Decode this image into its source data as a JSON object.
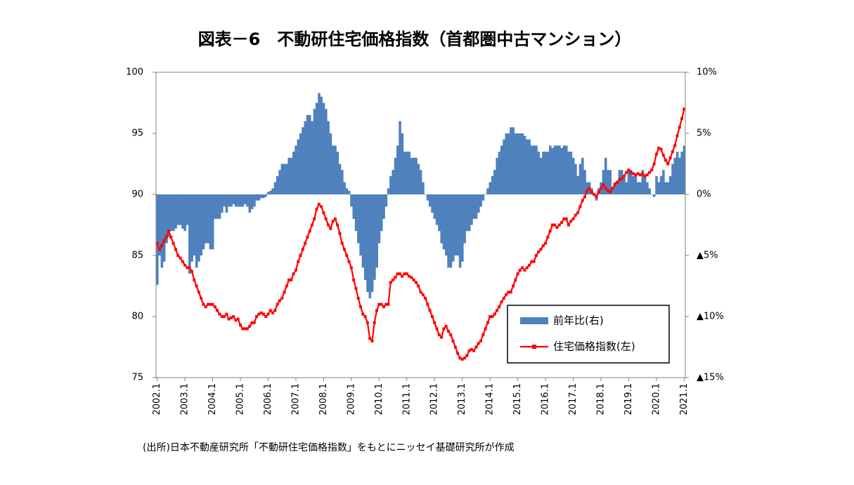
{
  "chart_data": {
    "type": "combo",
    "title": "図表－6　不動研住宅価格指数（首都圏中古マンション）",
    "note": "(出所)日本不動産研究所「不動研住宅価格指数」をもとにニッセイ基礎研究所が作成",
    "categories": [
      "2002.1",
      null,
      null,
      null,
      null,
      null,
      null,
      null,
      null,
      null,
      null,
      null,
      "2003.1",
      null,
      null,
      null,
      null,
      null,
      null,
      null,
      null,
      null,
      null,
      null,
      "2004.1",
      null,
      null,
      null,
      null,
      null,
      null,
      null,
      null,
      null,
      null,
      null,
      "2005.1",
      null,
      null,
      null,
      null,
      null,
      null,
      null,
      null,
      null,
      null,
      null,
      "2006.1",
      null,
      null,
      null,
      null,
      null,
      null,
      null,
      null,
      null,
      null,
      null,
      "2007.1",
      null,
      null,
      null,
      null,
      null,
      null,
      null,
      null,
      null,
      null,
      null,
      "2008.1",
      null,
      null,
      null,
      null,
      null,
      null,
      null,
      null,
      null,
      null,
      null,
      "2009.1",
      null,
      null,
      null,
      null,
      null,
      null,
      null,
      null,
      null,
      null,
      null,
      "2010.1",
      null,
      null,
      null,
      null,
      null,
      null,
      null,
      null,
      null,
      null,
      null,
      "2011.1",
      null,
      null,
      null,
      null,
      null,
      null,
      null,
      null,
      null,
      null,
      null,
      "2012.1",
      null,
      null,
      null,
      null,
      null,
      null,
      null,
      null,
      null,
      null,
      null,
      "2013.1",
      null,
      null,
      null,
      null,
      null,
      null,
      null,
      null,
      null,
      null,
      null,
      "2014.1",
      null,
      null,
      null,
      null,
      null,
      null,
      null,
      null,
      null,
      null,
      null,
      "2015.1",
      null,
      null,
      null,
      null,
      null,
      null,
      null,
      null,
      null,
      null,
      null,
      "2016.1",
      null,
      null,
      null,
      null,
      null,
      null,
      null,
      null,
      null,
      null,
      null,
      "2017.1",
      null,
      null,
      null,
      null,
      null,
      null,
      null,
      null,
      null,
      null,
      null,
      "2018.1",
      null,
      null,
      null,
      null,
      null,
      null,
      null,
      null,
      null,
      null,
      null,
      "2019.1",
      null,
      null,
      null,
      null,
      null,
      null,
      null,
      null,
      null,
      null,
      null,
      "2020.1",
      null,
      null,
      null,
      null,
      null,
      null,
      null,
      null,
      null,
      null,
      null,
      "2021.1"
    ],
    "series": [
      {
        "name": "前年比(右)",
        "type": "bar",
        "axis": "y2",
        "color": "#4f81bd",
        "values": [
          -7.4,
          -5,
          -6,
          -5.5,
          -4,
          -3.5,
          -3,
          -3,
          -2.8,
          -2.5,
          -2.5,
          -2.8,
          -3,
          -2.5,
          -6.5,
          -5.5,
          -5,
          -6,
          -5.5,
          -5,
          -4.5,
          -4,
          -4,
          -4.5,
          -4.5,
          -2,
          -2,
          -2,
          -1.5,
          -1,
          -1.5,
          -1,
          -1,
          -0.8,
          -1,
          -1,
          -1,
          -1,
          -0.8,
          -1,
          -1.5,
          -1.2,
          -1,
          -0.5,
          -0.5,
          -0.3,
          -0.3,
          -0.2,
          0.2,
          0.3,
          0.5,
          1,
          1.5,
          2,
          2.5,
          2.5,
          2.5,
          3,
          3,
          3.5,
          4,
          4.5,
          5,
          5.5,
          6,
          6.5,
          6.5,
          6,
          7,
          7.5,
          8.3,
          8,
          7.5,
          7,
          6,
          5,
          4,
          4,
          3.5,
          2.5,
          2,
          1,
          0.5,
          0.3,
          -1,
          -2,
          -3,
          -4,
          -5,
          -6,
          -7,
          -8,
          -8.5,
          -8,
          -7,
          -6,
          -4,
          -3,
          -2,
          -1,
          0.5,
          1.5,
          2,
          3,
          4,
          6,
          5,
          3.5,
          3.5,
          3.5,
          3,
          3,
          3,
          2.5,
          2,
          1,
          0,
          -0.5,
          -1,
          -1.5,
          -2,
          -2.5,
          -3,
          -4,
          -4.5,
          -5,
          -6,
          -6,
          -5.5,
          -5,
          -5,
          -6,
          -5.5,
          -4,
          -3,
          -3,
          -2.5,
          -2,
          -2,
          -1.5,
          -1,
          -0.5,
          0,
          0.5,
          1,
          1.5,
          2,
          3,
          3.5,
          4,
          4.5,
          5,
          5,
          5.5,
          5.5,
          5,
          5,
          5,
          5,
          4.8,
          4.5,
          4.5,
          4,
          4,
          4,
          3.5,
          3,
          3.5,
          3.5,
          3.5,
          4,
          3.8,
          4,
          4,
          4,
          3.8,
          4,
          4,
          3.5,
          3.5,
          3,
          2.5,
          1.5,
          2.5,
          3,
          2,
          1,
          1,
          0.5,
          0,
          -0.5,
          0.5,
          1,
          2,
          3,
          2,
          2,
          0.5,
          1,
          1,
          2,
          2,
          1.5,
          1,
          2,
          2,
          1.5,
          1.5,
          1,
          1,
          2,
          1.5,
          1,
          0.5,
          0,
          -0.2,
          1.5,
          1,
          1.5,
          2,
          1,
          1,
          1.5,
          2.5,
          3,
          3.5,
          3,
          3.5,
          4
        ]
      },
      {
        "name": "住宅価格指数(左)",
        "type": "line",
        "axis": "y",
        "color": "#ff0000",
        "values": [
          86,
          85.5,
          85.8,
          86.2,
          86.5,
          87,
          86.5,
          86,
          85.5,
          85,
          84.8,
          84.5,
          84.2,
          84,
          84,
          83.7,
          83,
          82.5,
          82,
          81.5,
          81,
          80.8,
          81,
          81,
          81,
          80.8,
          80.5,
          80.2,
          80,
          80,
          80.2,
          79.8,
          79.9,
          80,
          79.7,
          79.8,
          79.3,
          79,
          79,
          79,
          79.2,
          79.5,
          79.5,
          80,
          80.2,
          80.3,
          80.2,
          80,
          80.2,
          80.5,
          80.3,
          80.5,
          81,
          81.3,
          81.5,
          82,
          82.5,
          83,
          83,
          83.5,
          83.8,
          84.5,
          85,
          85.5,
          86,
          86.5,
          87,
          87.5,
          88,
          88.8,
          89.2,
          89,
          88.5,
          88,
          87.5,
          87.2,
          87.8,
          88,
          87.5,
          86.8,
          86,
          85.5,
          85,
          84.5,
          84,
          83,
          82.3,
          81.5,
          80.8,
          80.2,
          80,
          79.5,
          78.2,
          78,
          79.5,
          80.5,
          81,
          81,
          80.8,
          81,
          81,
          82.8,
          83,
          83.2,
          83.5,
          83.5,
          83.3,
          83.5,
          83.5,
          83.3,
          83.2,
          83,
          82.8,
          82.5,
          82,
          81.8,
          81.5,
          81,
          80.5,
          80,
          79.5,
          79,
          78.5,
          78.3,
          79,
          79.2,
          78.8,
          78.5,
          78,
          77.5,
          77,
          76.6,
          76.5,
          76.6,
          76.8,
          77.2,
          77.3,
          77.2,
          77.5,
          77.8,
          78,
          78.5,
          79,
          79.5,
          80,
          80,
          80.2,
          80.5,
          80.8,
          81.2,
          81.5,
          81.8,
          82,
          82,
          82.5,
          83,
          83.5,
          83.8,
          84,
          83.8,
          84,
          84.2,
          84.5,
          84.5,
          85,
          85.3,
          85.5,
          85.8,
          86,
          86.5,
          87,
          87.5,
          87.5,
          87.3,
          87.5,
          87.7,
          88,
          88,
          87.5,
          87.8,
          88,
          88.3,
          88.5,
          89,
          89.5,
          89.8,
          90.3,
          90.5,
          90.2,
          90,
          89.8,
          90.2,
          90.5,
          90.8,
          90.5,
          90.3,
          90.2,
          90.5,
          90.8,
          91,
          91.2,
          91.3,
          91.5,
          91.8,
          92,
          91.8,
          91.7,
          91.6,
          91.7,
          91.6,
          91.7,
          91.5,
          91.6,
          91.8,
          92,
          92.5,
          93.3,
          93.8,
          93.7,
          93.2,
          92.8,
          92.5,
          93,
          93.5,
          94,
          94.8,
          95.5,
          96.2,
          97
        ]
      }
    ],
    "ylim": [
      75,
      100
    ],
    "yticks": [
      75,
      80,
      85,
      90,
      95,
      100
    ],
    "y2lim": [
      -15,
      10
    ],
    "y2ticks": [
      {
        "value": -15,
        "label": "▲15%"
      },
      {
        "value": -10,
        "label": "▲10%"
      },
      {
        "value": -5,
        "label": "▲5%"
      },
      {
        "value": 0,
        "label": "0%"
      },
      {
        "value": 5,
        "label": "5%"
      },
      {
        "value": 10,
        "label": "10%"
      }
    ],
    "grid": false
  }
}
